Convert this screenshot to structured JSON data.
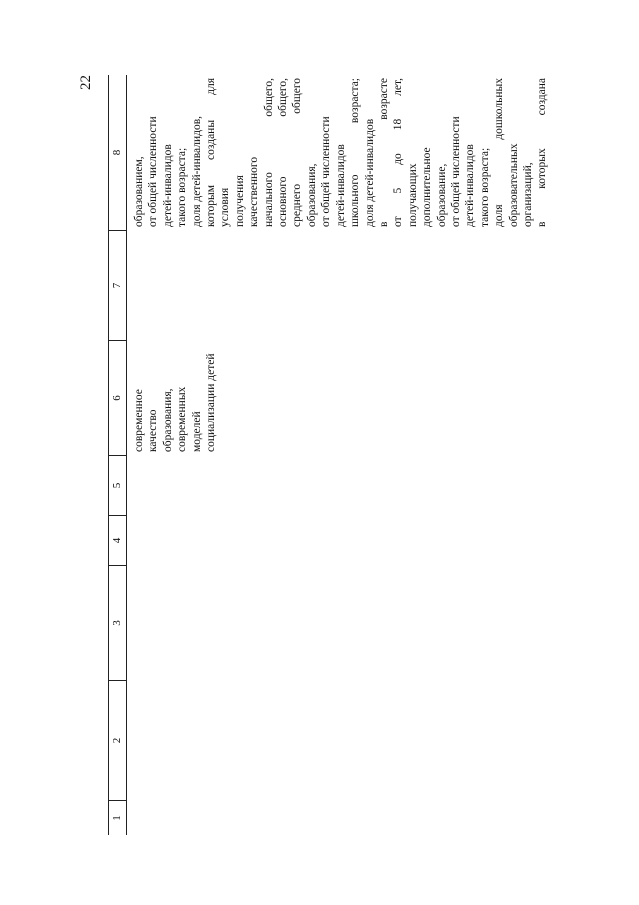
{
  "header": {
    "page_number": "22"
  },
  "table": {
    "columns": [
      "1",
      "2",
      "3",
      "4",
      "5",
      "6",
      "7",
      "8"
    ],
    "cells": {
      "6": [
        "современное",
        "качество",
        "образования,",
        "современных",
        "моделей",
        "социализации детей"
      ],
      "8": [
        "образованием,",
        "от общей численности",
        "детей-инвалидов",
        "такого возраста;",
        "доля детей-инвалидов,",
        "которым созданы для",
        "условия",
        "получения",
        "качественного",
        "начального общего,",
        "основного общего,",
        "среднего общего",
        "образования,",
        "от общей численности",
        "детей-инвалидов",
        "школьного возраста;",
        "доля детей-инвалидов",
        "в возрасте",
        "от 5 до 18 лет,",
        "получающих",
        "дополнительное",
        "образование,",
        "от общей численности",
        "детей-инвалидов",
        "такого возраста;",
        "доля дошкольных",
        "образовательных",
        "организаций,",
        "в которых создана"
      ]
    }
  }
}
